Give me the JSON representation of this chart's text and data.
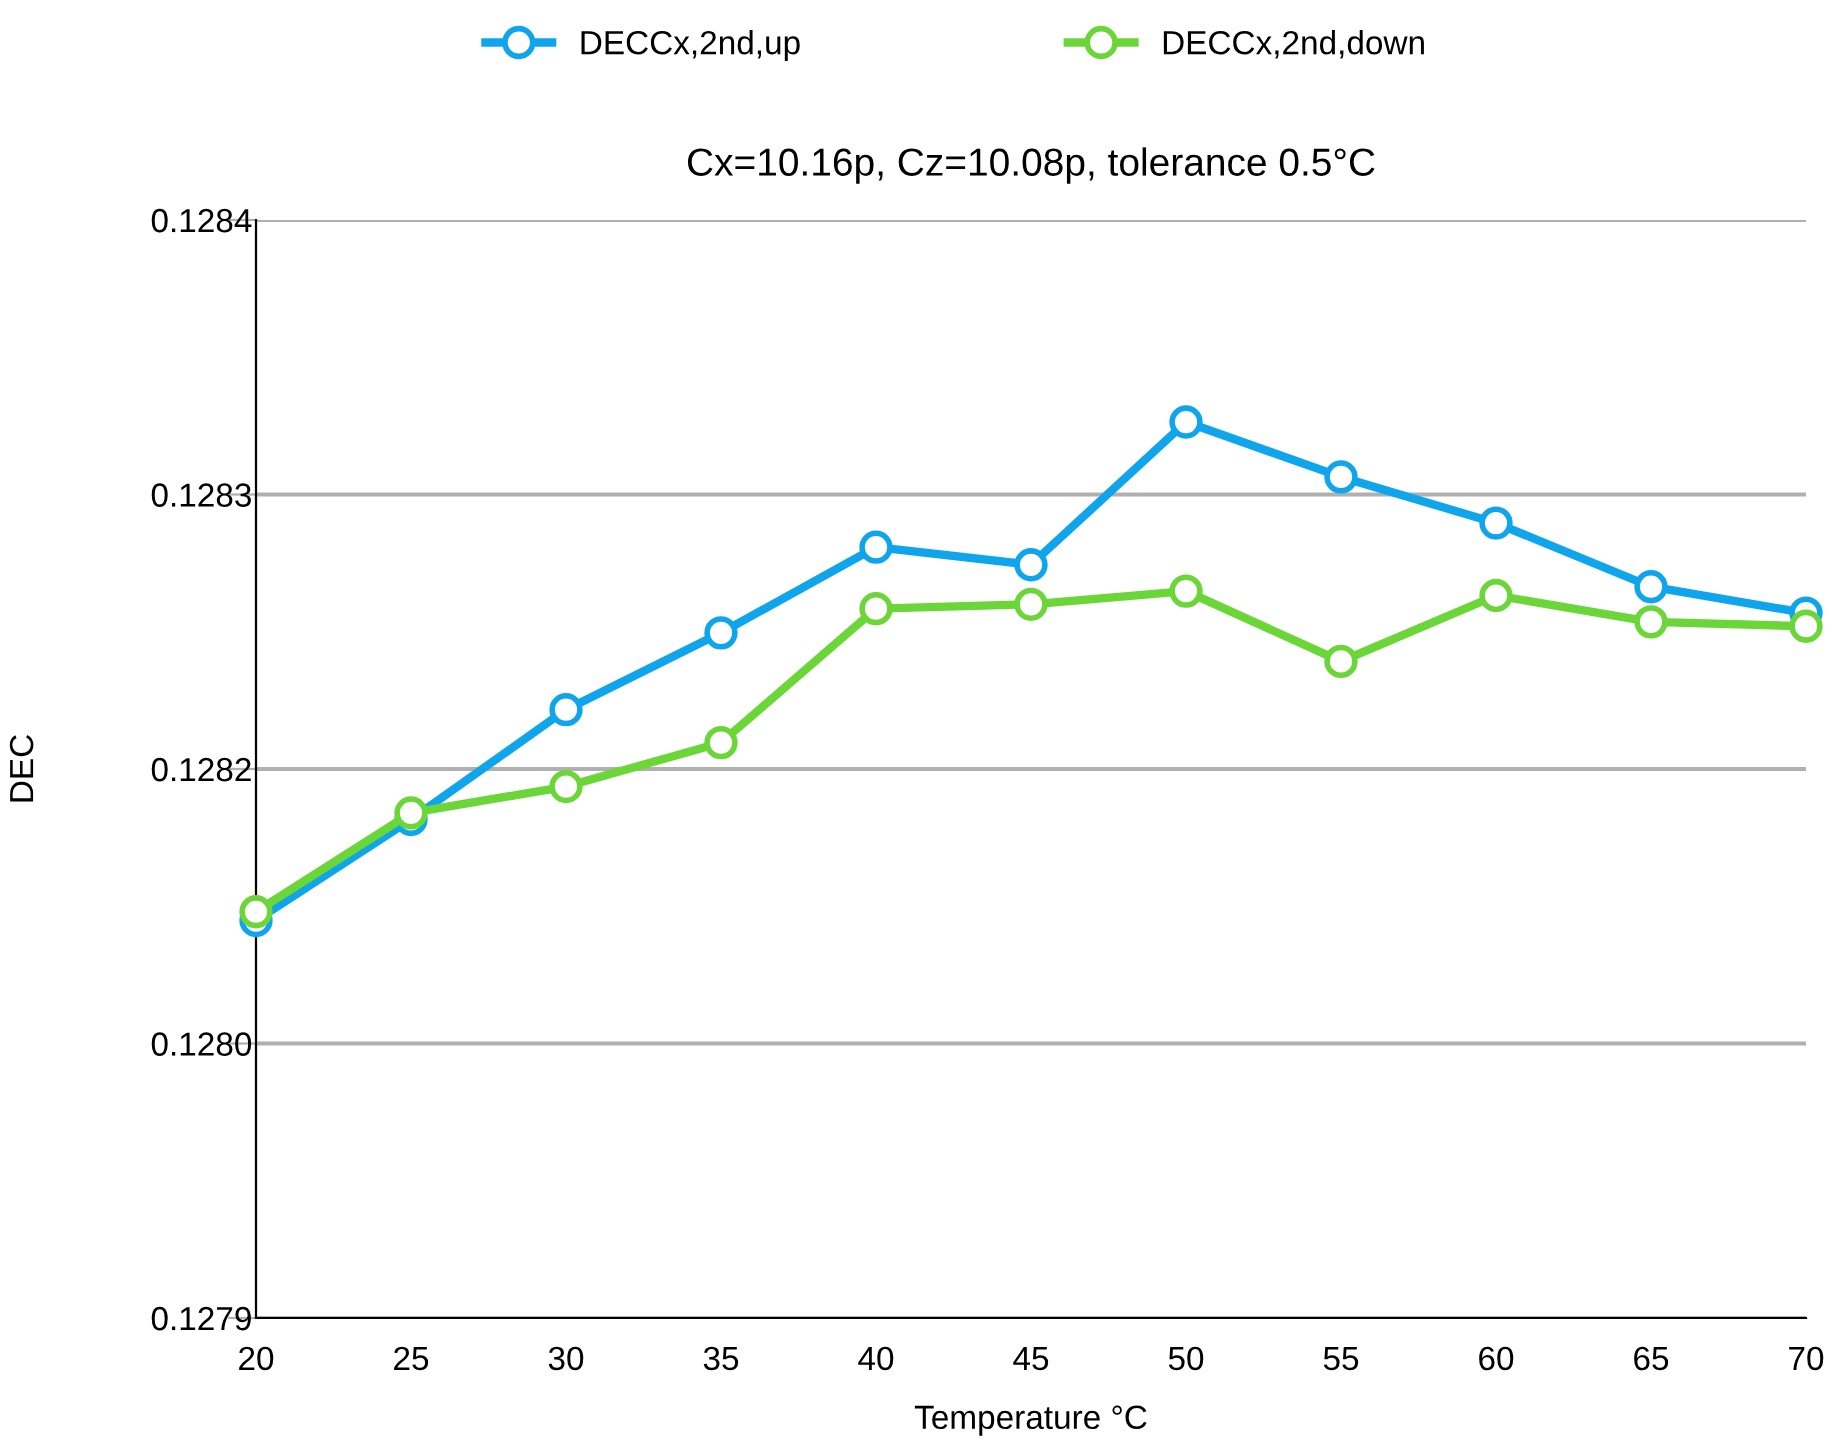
{
  "chart_data": {
    "type": "line",
    "title": "Cx=10.16p, Cz=10.08p, tolerance 0.5°C",
    "xlabel": "Temperature °C",
    "ylabel": "DEC",
    "x": [
      20,
      25,
      30,
      35,
      40,
      45,
      50,
      55,
      60,
      65,
      70
    ],
    "series": [
      {
        "name": "DECCx,2nd,up",
        "color": "#0fa5ec",
        "values": [
          0.128081,
          0.128127,
          0.128177,
          0.128212,
          0.128251,
          0.128243,
          0.128308,
          0.128283,
          0.128262,
          0.128233,
          0.128221
        ]
      },
      {
        "name": "DECCx,2nd,down",
        "color": "#6bd638",
        "values": [
          0.128085,
          0.12813,
          0.128142,
          0.128162,
          0.128223,
          0.128225,
          0.128231,
          0.128199,
          0.128229,
          0.128217,
          0.128215
        ]
      }
    ],
    "xlim": [
      20,
      70
    ],
    "xticks": [
      20,
      25,
      30,
      35,
      40,
      45,
      50,
      55,
      60,
      65,
      70
    ],
    "ylim": [
      0.1279,
      0.1284
    ],
    "yticks": [
      {
        "value": 0.1279,
        "label": "0.1279"
      },
      {
        "value": 0.128025,
        "label": "0.1280"
      },
      {
        "value": 0.12815,
        "label": "0.1282"
      },
      {
        "value": 0.128275,
        "label": "0.1283"
      },
      {
        "value": 0.1284,
        "label": "0.1284"
      }
    ],
    "grid": "y",
    "legend": "top",
    "marker": "circle",
    "line_style": "solid"
  }
}
